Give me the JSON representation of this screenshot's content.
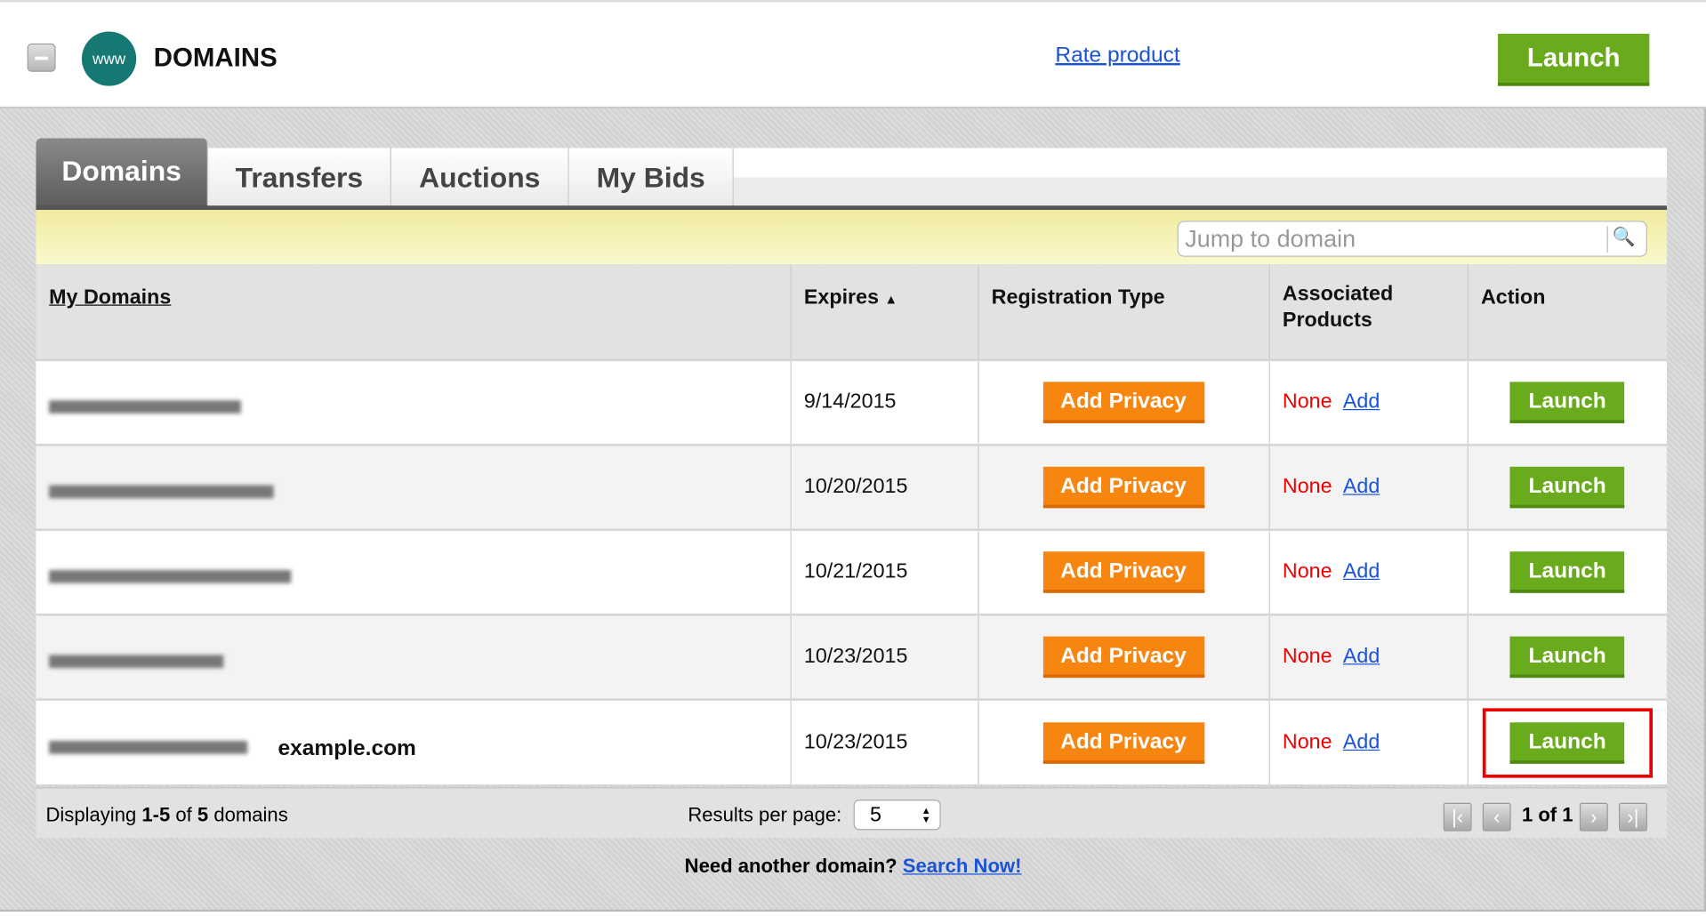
{
  "header": {
    "title": "DOMAINS",
    "logo_text": "www",
    "rate_link": "Rate product",
    "launch": "Launch"
  },
  "tabs": [
    "Domains",
    "Transfers",
    "Auctions",
    "My Bids"
  ],
  "search": {
    "placeholder": "Jump to domain"
  },
  "table": {
    "columns": [
      "My Domains",
      "Expires",
      "Registration Type",
      "Associated Products",
      "Action"
    ],
    "sort_indicator": "▲",
    "rows": [
      {
        "domain_note": "",
        "expires": "9/14/2015",
        "privacy": "Add Privacy",
        "products": "None",
        "add": "Add",
        "action": "Launch"
      },
      {
        "domain_note": "",
        "expires": "10/20/2015",
        "privacy": "Add Privacy",
        "products": "None",
        "add": "Add",
        "action": "Launch"
      },
      {
        "domain_note": "",
        "expires": "10/21/2015",
        "privacy": "Add Privacy",
        "products": "None",
        "add": "Add",
        "action": "Launch"
      },
      {
        "domain_note": "",
        "expires": "10/23/2015",
        "privacy": "Add Privacy",
        "products": "None",
        "add": "Add",
        "action": "Launch"
      },
      {
        "domain_note": "example.com",
        "expires": "10/23/2015",
        "privacy": "Add Privacy",
        "products": "None",
        "add": "Add",
        "action": "Launch"
      }
    ]
  },
  "footer": {
    "display_prefix": "Displaying ",
    "range": "1-5",
    "of": " of ",
    "total": "5",
    "suffix": " domains",
    "rpp_label": "Results per page:",
    "rpp_value": "5",
    "page_info": "1 of 1"
  },
  "bottom": {
    "text": "Need another domain? ",
    "link": "Search Now!"
  },
  "colors": {
    "launch_green": "#6aab1d",
    "privacy_orange": "#f6860f",
    "highlight": "#e00000"
  }
}
